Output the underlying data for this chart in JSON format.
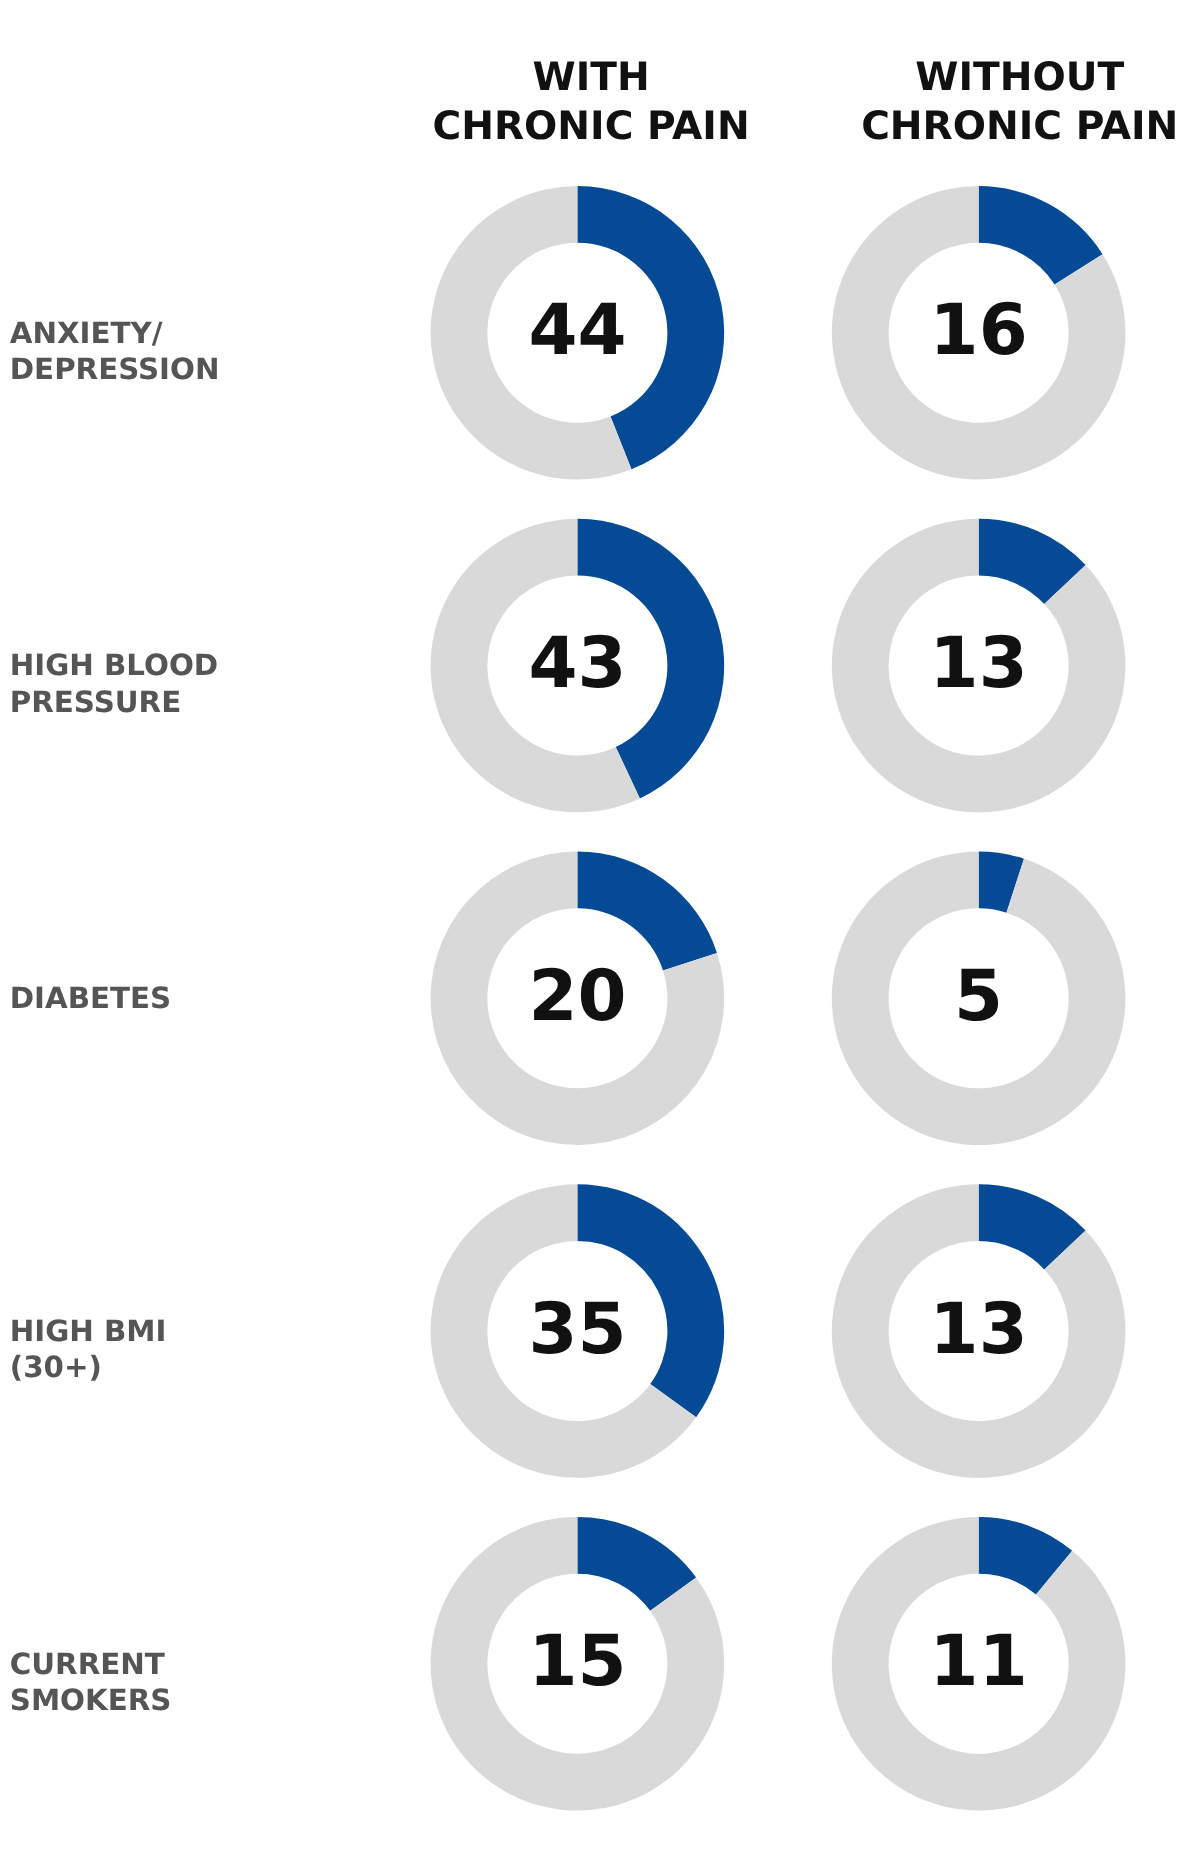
{
  "chart_data": [
    {
      "type": "donut",
      "title": "WITH\nCHRONIC PAIN",
      "ylabel": "ANXIETY/\nDEPRESSION",
      "categories": [
        null,
        null
      ],
      "values": [
        44,
        56
      ],
      "colors": [
        "#044a94",
        "#d9d9d9"
      ],
      "value_labels": [
        "44",
        null
      ]
    },
    {
      "type": "donut",
      "title": "WITHOUT\nCHRONIC PAIN",
      "categories": [
        null,
        null
      ],
      "values": [
        16,
        84
      ],
      "colors": [
        "#044a94",
        "#d9d9d9"
      ],
      "value_labels": [
        "16",
        null
      ]
    },
    {
      "type": "donut",
      "ylabel": "HIGH BLOOD\nPRESSURE",
      "categories": [
        null,
        null
      ],
      "values": [
        43,
        57
      ],
      "colors": [
        "#044a94",
        "#d9d9d9"
      ],
      "value_labels": [
        "43",
        null
      ]
    },
    {
      "type": "donut",
      "categories": [
        null,
        null
      ],
      "values": [
        13,
        87
      ],
      "colors": [
        "#044a94",
        "#d9d9d9"
      ],
      "value_labels": [
        "13",
        null
      ]
    },
    {
      "type": "donut",
      "ylabel": "DIABETES",
      "categories": [
        null,
        null
      ],
      "values": [
        20,
        80
      ],
      "colors": [
        "#044a94",
        "#d9d9d9"
      ],
      "value_labels": [
        "20",
        null
      ]
    },
    {
      "type": "donut",
      "categories": [
        null,
        null
      ],
      "values": [
        5,
        95
      ],
      "colors": [
        "#044a94",
        "#d9d9d9"
      ],
      "value_labels": [
        "5",
        null
      ]
    },
    {
      "type": "donut",
      "ylabel": "HIGH BMI\n(30+)",
      "categories": [
        null,
        null
      ],
      "values": [
        35,
        65
      ],
      "colors": [
        "#044a94",
        "#d9d9d9"
      ],
      "value_labels": [
        "35",
        null
      ]
    },
    {
      "type": "donut",
      "categories": [
        null,
        null
      ],
      "values": [
        13,
        87
      ],
      "colors": [
        "#044a94",
        "#d9d9d9"
      ],
      "value_labels": [
        "13",
        null
      ]
    },
    {
      "type": "donut",
      "ylabel": "CURRENT\nSMOKERS",
      "categories": [
        null,
        null
      ],
      "values": [
        15,
        85
      ],
      "colors": [
        "#044a94",
        "#d9d9d9"
      ],
      "value_labels": [
        "15",
        null
      ]
    },
    {
      "type": "donut",
      "categories": [
        null,
        null
      ],
      "values": [
        11,
        89
      ],
      "colors": [
        "#044a94",
        "#d9d9d9"
      ],
      "value_labels": [
        "11",
        null
      ]
    }
  ]
}
